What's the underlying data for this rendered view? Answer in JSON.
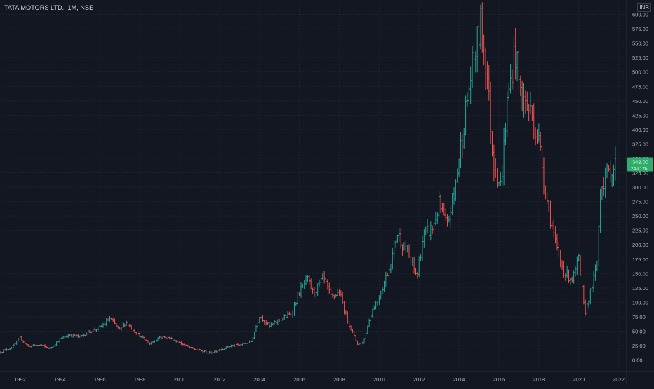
{
  "header": {
    "title": "TATA MOTORS LTD., 1M, NSE",
    "currency": "INR"
  },
  "price_tag": {
    "price": "342.00",
    "countdown": "24d 17h"
  },
  "colors": {
    "background": "#131722",
    "grid": "#1f2330",
    "axis_text": "#b2b5be",
    "up": "#26a69a",
    "down": "#ef5350",
    "tag_bg": "#2fae6b",
    "crosshair": "#5d6170"
  },
  "chart_data": {
    "type": "ohlc",
    "interval": "1M",
    "x_tick_labels": [
      "1992",
      "1994",
      "1996",
      "1998",
      "2000",
      "2002",
      "2004",
      "2006",
      "2008",
      "2010",
      "2012",
      "2014",
      "2016",
      "2018",
      "2020",
      "2022"
    ],
    "y_tick_labels": [
      "0.00",
      "25.00",
      "50.00",
      "75.00",
      "100.00",
      "125.00",
      "150.00",
      "175.00",
      "200.00",
      "225.00",
      "250.00",
      "275.00",
      "300.00",
      "325.00",
      "350.00",
      "375.00",
      "400.00",
      "425.00",
      "450.00",
      "475.00",
      "500.00",
      "525.00",
      "550.00",
      "575.00",
      "600.00"
    ],
    "xlim": [
      1991.0,
      2022.4
    ],
    "ylim": [
      -20,
      625
    ],
    "grid": true,
    "last_price": 342.0,
    "anchors": [
      [
        1991.0,
        14
      ],
      [
        1991.6,
        22
      ],
      [
        1992.0,
        38
      ],
      [
        1992.4,
        24
      ],
      [
        1993.0,
        26
      ],
      [
        1993.5,
        20
      ],
      [
        1994.0,
        36
      ],
      [
        1994.5,
        44
      ],
      [
        1995.0,
        40
      ],
      [
        1995.5,
        50
      ],
      [
        1996.0,
        56
      ],
      [
        1996.5,
        72
      ],
      [
        1997.0,
        52
      ],
      [
        1997.3,
        66
      ],
      [
        1997.8,
        48
      ],
      [
        1998.5,
        28
      ],
      [
        1999.0,
        40
      ],
      [
        1999.5,
        38
      ],
      [
        2000.0,
        30
      ],
      [
        2000.6,
        20
      ],
      [
        2001.5,
        12
      ],
      [
        2002.0,
        18
      ],
      [
        2002.5,
        24
      ],
      [
        2003.0,
        26
      ],
      [
        2003.6,
        32
      ],
      [
        2004.0,
        78
      ],
      [
        2004.5,
        58
      ],
      [
        2005.0,
        70
      ],
      [
        2005.6,
        80
      ],
      [
        2006.0,
        118
      ],
      [
        2006.4,
        140
      ],
      [
        2006.7,
        115
      ],
      [
        2007.2,
        142
      ],
      [
        2007.6,
        108
      ],
      [
        2008.0,
        118
      ],
      [
        2008.4,
        70
      ],
      [
        2008.9,
        28
      ],
      [
        2009.2,
        30
      ],
      [
        2009.6,
        82
      ],
      [
        2010.0,
        110
      ],
      [
        2010.6,
        170
      ],
      [
        2010.9,
        222
      ],
      [
        2011.2,
        200
      ],
      [
        2011.6,
        170
      ],
      [
        2011.9,
        145
      ],
      [
        2012.2,
        215
      ],
      [
        2012.7,
        230
      ],
      [
        2013.0,
        270
      ],
      [
        2013.4,
        230
      ],
      [
        2013.8,
        300
      ],
      [
        2014.2,
        400
      ],
      [
        2014.6,
        495
      ],
      [
        2015.1,
        585
      ],
      [
        2015.4,
        500
      ],
      [
        2015.7,
        350
      ],
      [
        2016.1,
        300
      ],
      [
        2016.4,
        440
      ],
      [
        2016.8,
        540
      ],
      [
        2017.1,
        460
      ],
      [
        2017.6,
        430
      ],
      [
        2018.0,
        380
      ],
      [
        2018.4,
        280
      ],
      [
        2018.9,
        190
      ],
      [
        2019.3,
        150
      ],
      [
        2019.7,
        140
      ],
      [
        2020.0,
        175
      ],
      [
        2020.3,
        80
      ],
      [
        2020.6,
        120
      ],
      [
        2020.9,
        160
      ],
      [
        2021.1,
        305
      ],
      [
        2021.4,
        320
      ],
      [
        2021.7,
        330
      ],
      [
        2021.9,
        342
      ]
    ]
  }
}
